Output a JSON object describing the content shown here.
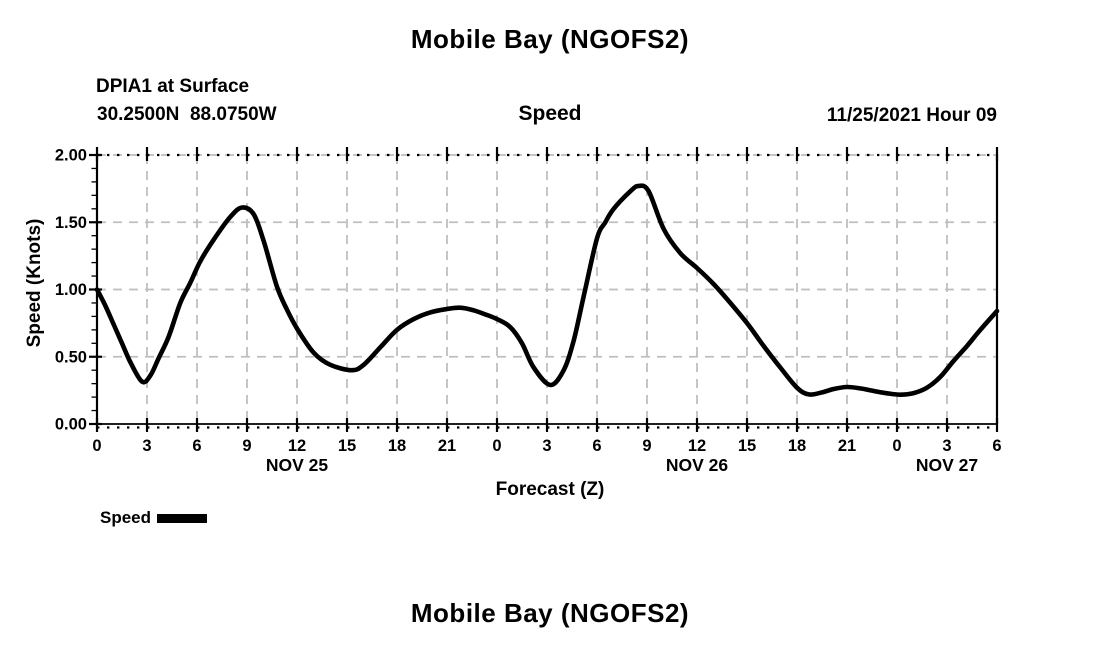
{
  "page": {
    "title": "Mobile Bay (NGOFS2)",
    "footer_title": "Mobile Bay (NGOFS2)"
  },
  "header": {
    "station": "DPIA1 at Surface",
    "coordinates": "30.2500N  88.0750W",
    "panel_title": "Speed",
    "forecast_run": "11/25/2021 Hour 09"
  },
  "axes": {
    "x_label": "Forecast (Z)",
    "y_label": "Speed (Knots)"
  },
  "legend": {
    "label": "Speed",
    "color": "#000000"
  },
  "colors": {
    "line": "#000000",
    "grid": "#bfbfbf",
    "axis": "#000000",
    "background": "#ffffff"
  },
  "chart_data": {
    "type": "line",
    "title": "Mobile Bay (NGOFS2)",
    "subtitle": "Speed",
    "xlabel": "Forecast (Z)",
    "ylabel": "Speed (Knots)",
    "ylim": [
      0,
      2
    ],
    "x_hours": [
      0,
      54
    ],
    "grid": {
      "vertical_every_hours": 3,
      "horizontal_values": [
        0.5,
        1.0,
        1.5,
        2.0
      ]
    },
    "y_minor_step": 0.1,
    "yticks": [
      {
        "value": 0.0,
        "label": "0.00"
      },
      {
        "value": 0.5,
        "label": "0.50"
      },
      {
        "value": 1.0,
        "label": "1.00"
      },
      {
        "value": 1.5,
        "label": "1.50"
      },
      {
        "value": 2.0,
        "label": "2.00"
      }
    ],
    "xticks": [
      {
        "hour": 0,
        "label": "0"
      },
      {
        "hour": 3,
        "label": "3"
      },
      {
        "hour": 6,
        "label": "6"
      },
      {
        "hour": 9,
        "label": "9"
      },
      {
        "hour": 12,
        "label": "12"
      },
      {
        "hour": 15,
        "label": "15"
      },
      {
        "hour": 18,
        "label": "18"
      },
      {
        "hour": 21,
        "label": "21"
      },
      {
        "hour": 24,
        "label": "0"
      },
      {
        "hour": 27,
        "label": "3"
      },
      {
        "hour": 30,
        "label": "6"
      },
      {
        "hour": 33,
        "label": "9"
      },
      {
        "hour": 36,
        "label": "12"
      },
      {
        "hour": 39,
        "label": "15"
      },
      {
        "hour": 42,
        "label": "18"
      },
      {
        "hour": 45,
        "label": "21"
      },
      {
        "hour": 48,
        "label": "0"
      },
      {
        "hour": 51,
        "label": "3"
      },
      {
        "hour": 54,
        "label": "6"
      }
    ],
    "date_labels": [
      {
        "hour": 12,
        "label": "NOV 25"
      },
      {
        "hour": 36,
        "label": "NOV 26"
      },
      {
        "hour": 51,
        "label": "NOV 27"
      }
    ],
    "legend_position": "bottom-left",
    "series": [
      {
        "name": "Speed",
        "color": "#000000",
        "points": [
          [
            0,
            1.0
          ],
          [
            0.5,
            0.88
          ],
          [
            1,
            0.74
          ],
          [
            1.5,
            0.6
          ],
          [
            2,
            0.46
          ],
          [
            2.7,
            0.315
          ],
          [
            3.2,
            0.36
          ],
          [
            3.7,
            0.49
          ],
          [
            4.3,
            0.65
          ],
          [
            5,
            0.9
          ],
          [
            5.6,
            1.05
          ],
          [
            6.2,
            1.21
          ],
          [
            7,
            1.37
          ],
          [
            8,
            1.54
          ],
          [
            8.7,
            1.61
          ],
          [
            9.4,
            1.56
          ],
          [
            10,
            1.36
          ],
          [
            10.8,
            1.02
          ],
          [
            11.4,
            0.85
          ],
          [
            12,
            0.71
          ],
          [
            13,
            0.53
          ],
          [
            14,
            0.44
          ],
          [
            15.3,
            0.4
          ],
          [
            16,
            0.44
          ],
          [
            17,
            0.57
          ],
          [
            18,
            0.7
          ],
          [
            19,
            0.78
          ],
          [
            20,
            0.83
          ],
          [
            21,
            0.855
          ],
          [
            21.8,
            0.865
          ],
          [
            22.6,
            0.845
          ],
          [
            23.3,
            0.815
          ],
          [
            24,
            0.78
          ],
          [
            24.8,
            0.72
          ],
          [
            25.5,
            0.6
          ],
          [
            26.2,
            0.42
          ],
          [
            27.2,
            0.29
          ],
          [
            28,
            0.4
          ],
          [
            28.6,
            0.62
          ],
          [
            29.2,
            0.95
          ],
          [
            30,
            1.38
          ],
          [
            30.5,
            1.5
          ],
          [
            31,
            1.6
          ],
          [
            32,
            1.73
          ],
          [
            32.5,
            1.77
          ],
          [
            33.1,
            1.73
          ],
          [
            34,
            1.45
          ],
          [
            35,
            1.27
          ],
          [
            36,
            1.16
          ],
          [
            37,
            1.04
          ],
          [
            38,
            0.9
          ],
          [
            39,
            0.75
          ],
          [
            40,
            0.58
          ],
          [
            41,
            0.42
          ],
          [
            42,
            0.27
          ],
          [
            42.7,
            0.22
          ],
          [
            43.5,
            0.235
          ],
          [
            44.2,
            0.26
          ],
          [
            45,
            0.275
          ],
          [
            45.8,
            0.265
          ],
          [
            46.6,
            0.245
          ],
          [
            47.4,
            0.228
          ],
          [
            48.2,
            0.218
          ],
          [
            49,
            0.23
          ],
          [
            49.8,
            0.27
          ],
          [
            50.6,
            0.35
          ],
          [
            51.4,
            0.47
          ],
          [
            52.2,
            0.58
          ],
          [
            53,
            0.7
          ],
          [
            54,
            0.84
          ]
        ]
      }
    ]
  }
}
